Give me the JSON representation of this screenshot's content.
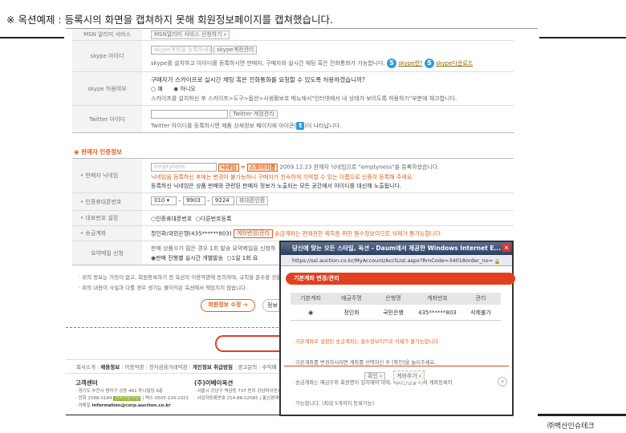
{
  "notice": "※ 옥션예제 : 등록시의 화면을 캡쳐하지 못해 회원정보페이지를 캡쳐했습니다.",
  "form": {
    "msn": {
      "label": "MSN 알리미 서비스",
      "button": "MSN알리미 서비스 신청하기"
    },
    "skype_id": {
      "label": "skype 아이디",
      "placeholder": "skype계정을 등록하세요.",
      "button": "skype계정관리",
      "desc": "skype를 설치하고 아이디를 등록하시면 판매자, 구매자와 실시간 채팅 혹은 전화통화가 가능합니다.",
      "link1": "skype란?",
      "link2": "skype다운로드"
    },
    "skype_allow": {
      "label": "skype 허용여부",
      "question": "구매자가 스카이프로 실시간 채팅 혹은 전화통화를 요청할 수 있도록 허용하겠습니까?",
      "opt_yes": "예",
      "opt_no": "아니오",
      "selected": "아니오",
      "desc": "스카이프를 설치하신 후 스카이프>도구>옵션>사생활보호 메뉴에서\"인터넷에서 내 상태가 보이도록 허용하기\"부분에 체크합니다."
    },
    "twitter": {
      "label": "Twitter 아이디",
      "button": "Twitter 계정관리",
      "desc_pre": "Twitter 아이디를 등록하시면 제품 상세정보 페이지에 아이콘(",
      "desc_post": ")이 나타납니다."
    }
  },
  "seller": {
    "heading": "판매자 인증정보",
    "nickname": {
      "label": "판매자 닉네임",
      "value": "emptyness",
      "badge1": "닉네임",
      "eq": "=",
      "badge2": "스토어이름",
      "registered": "2009.12.23 판매자 닉네임으로 \"emptyness\"를 등록하셨습니다.",
      "warn": "닉네임을 등록하신 후에는 변경이 불가능하니 구매자가 친숙하게 기억할 수 있는 이름으로 신중히 등록해 주세요.",
      "info": "등록하신 닉네임은 상품 판매와 관련된 판매자 정보가 노출되는 모든 공간에서 아이디를 대신해 노출됩니다."
    },
    "phone": {
      "label": "인증휴대폰번호",
      "prefix": "010",
      "mid": "9903",
      "last": "9224",
      "button": "휴대폰인증"
    },
    "rep": {
      "label": "대표번호 설정",
      "opt1": "인증휴대폰번호",
      "opt2": "다른번호등록"
    },
    "account": {
      "label": "송금계좌",
      "value": "정인화/국민은행(435******803)",
      "button": "계좌변경/관리",
      "note": "송금계좌는 판매권한 획득을 위한 필수정보이므로 삭제가 불가능합니다."
    },
    "mail": {
      "label": "요약메일 신청",
      "desc": "판매 상품수가 많은 경우 1회 발송 요약메일을 신청하",
      "opt1": "판매 진행별 실시간 개별발송",
      "opt2": "1일 1회 요"
    }
  },
  "notes": [
    "· 위의 정보는 거짓이 없고, 회원등록하기 전 옥션의 이용약관에 동의하며, 규칙을 준수할 것을",
    "· 위의 내용이 사실과 다를 경우 생기는 불이익은 옥션에서 책임지지 않습니다."
  ],
  "buttons": {
    "edit": "회원정보 수정",
    "info": "정보"
  },
  "footer": {
    "links": [
      "회사소개",
      "채용정보",
      "이용약관",
      "전자금융거래약관",
      "개인정보 취급방침",
      "광고문의",
      "수익배"
    ],
    "cs_title": "고객센터",
    "cs_addr": "· 경기도 부천시 원미구 상동 461 투나빌딩 6층",
    "cs_tel": "· 전화 1588-0184",
    "cs_badge": "전화전문상담",
    "cs_fax": "팩스 0505-134-1021",
    "cs_mail_label": "· 이메일",
    "cs_mail": "information@corp.auction.co.kr",
    "co_title": "(주)이베이옥션",
    "co_addr": "· 서울시 강남구 역삼동 737 번지 강남파이낸스",
    "co_reg": "· 사업자등록번호 214-86-02085 | 통신판매업"
  },
  "popup": {
    "title": "당신에 맞는 모든 스타일, 옥션 - Daum에서 제공한 Windows Internet E...",
    "url": "https://ssl.auction.co.kr/MyAccount/AcctList.aspx?RmCode=34018order_no=",
    "header": "기본계좌 변경/관리",
    "columns": [
      "기본계좌",
      "예금주명",
      "은행명",
      "계좌번호",
      "관리"
    ],
    "row": [
      "",
      "정인화",
      "국민은행",
      "435******803",
      "삭제불가"
    ],
    "notes": [
      "· 기본계좌로 설정된 송금계좌는 필수정보이므로 삭제가 불가능합니다.",
      "· 기본계좌를 변경하시려면 계좌를 선택하신 후 [확인]을 눌러주세요.",
      "· 송금계좌는 예금주와 회원명이 일치해야 하며, 계좌인증을 거쳐 계좌등록이",
      "  가능합니다. (최대 5개까지 등록가능)"
    ],
    "ok": "확인",
    "add": "계좌추가"
  },
  "company": "㈜벽산인슈테크",
  "colors": {
    "accent": "#e0601a",
    "popup_header": "#e0401f",
    "badge": "#8db32a"
  }
}
